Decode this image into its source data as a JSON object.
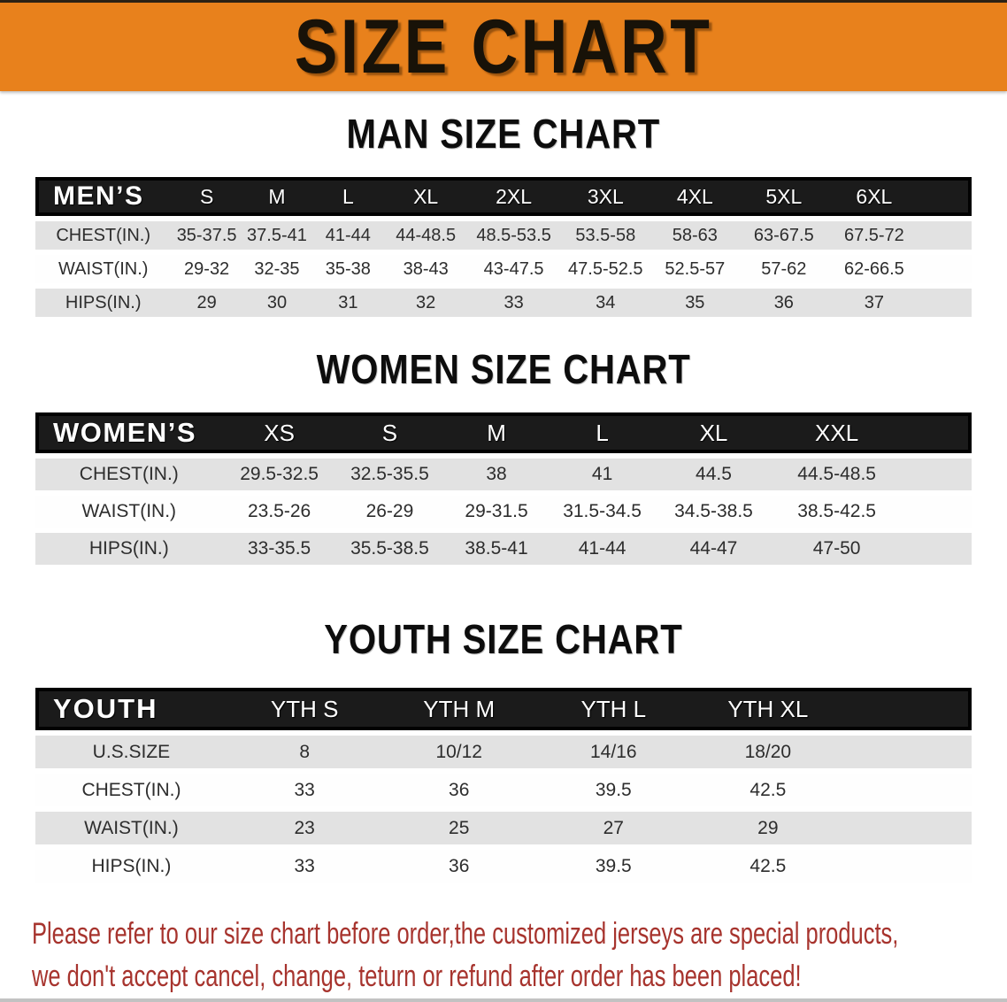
{
  "banner": {
    "title": "SIZE CHART",
    "bg_color": "#E8811C",
    "text_color": "#181208"
  },
  "colors": {
    "header_band": "#1B1B1B",
    "row_gray": "#E2E2E2",
    "row_white": "#FEFEFE",
    "disclaimer_red": "#A7342E"
  },
  "sections": [
    {
      "heading": "MAN SIZE CHART",
      "table": {
        "corner": "MEN’S",
        "columns": [
          "S",
          "M",
          "L",
          "XL",
          "2XL",
          "3XL",
          "4XL",
          "5XL",
          "6XL"
        ],
        "rows": [
          {
            "label": "CHEST(IN.)",
            "values": [
              "35-37.5",
              "37.5-41",
              "41-44",
              "44-48.5",
              "48.5-53.5",
              "53.5-58",
              "58-63",
              "63-67.5",
              "67.5-72"
            ]
          },
          {
            "label": "WAIST(IN.)",
            "values": [
              "29-32",
              "32-35",
              "35-38",
              "38-43",
              "43-47.5",
              "47.5-52.5",
              "52.5-57",
              "57-62",
              "62-66.5"
            ]
          },
          {
            "label": "HIPS(IN.)",
            "values": [
              "29",
              "30",
              "31",
              "32",
              "33",
              "34",
              "35",
              "36",
              "37"
            ]
          }
        ],
        "gray_rows": [
          0,
          2
        ]
      }
    },
    {
      "heading": "WOMEN SIZE CHART",
      "table": {
        "corner": "WOMEN’S",
        "columns": [
          "XS",
          "S",
          "M",
          "L",
          "XL",
          "XXL"
        ],
        "rows": [
          {
            "label": "CHEST(IN.)",
            "values": [
              "29.5-32.5",
              "32.5-35.5",
              "38",
              "41",
              "44.5",
              "44.5-48.5"
            ]
          },
          {
            "label": "WAIST(IN.)",
            "values": [
              "23.5-26",
              "26-29",
              "29-31.5",
              "31.5-34.5",
              "34.5-38.5",
              "38.5-42.5"
            ]
          },
          {
            "label": "HIPS(IN.)",
            "values": [
              "33-35.5",
              "35.5-38.5",
              "38.5-41",
              "41-44",
              "44-47",
              "47-50"
            ]
          }
        ],
        "gray_rows": [
          0,
          2
        ]
      }
    },
    {
      "heading": "YOUTH SIZE CHART",
      "table": {
        "corner": "YOUTH",
        "columns": [
          "YTH S",
          "YTH M",
          "YTH L",
          "YTH XL"
        ],
        "rows": [
          {
            "label": "U.S.SIZE",
            "values": [
              "8",
              "10/12",
              "14/16",
              "18/20"
            ]
          },
          {
            "label": "CHEST(IN.)",
            "values": [
              "33",
              "36",
              "39.5",
              "42.5"
            ]
          },
          {
            "label": "WAIST(IN.)",
            "values": [
              "23",
              "25",
              "27",
              "29"
            ]
          },
          {
            "label": "HIPS(IN.)",
            "values": [
              "33",
              "36",
              "39.5",
              "42.5"
            ]
          }
        ],
        "gray_rows": [
          0,
          2
        ]
      }
    }
  ],
  "disclaimer": {
    "lines": [
      "Please refer to our size chart before order,the customized jerseys are special products,",
      "we don't accept cancel, change, teturn or refund after order has been placed!"
    ]
  }
}
